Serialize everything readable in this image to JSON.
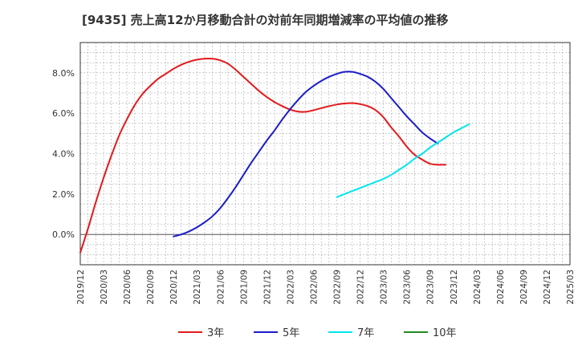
{
  "chart_data": {
    "type": "line",
    "title": "[9435]  売上高12か月移動合計の対前年同期増減率の平均値の推移",
    "xlabel": "",
    "ylabel": "",
    "ylim": [
      -1.5,
      9.5
    ],
    "y_ticks": [
      0,
      2,
      4,
      6,
      8
    ],
    "y_tick_labels": [
      "0.0%",
      "2.0%",
      "4.0%",
      "6.0%",
      "8.0%"
    ],
    "x_tick_labels": [
      "2019/12",
      "2020/03",
      "2020/06",
      "2020/09",
      "2020/12",
      "2021/03",
      "2021/06",
      "2021/09",
      "2021/12",
      "2022/03",
      "2022/06",
      "2022/09",
      "2022/12",
      "2023/03",
      "2023/06",
      "2023/09",
      "2023/12",
      "2024/03",
      "2024/06",
      "2024/09",
      "2024/12",
      "2025/03"
    ],
    "grid": true,
    "legend_position": "bottom",
    "series": [
      {
        "name": "3年",
        "color": "#e31a1c",
        "start_index": 0,
        "values": [
          -0.9,
          0.3,
          1.6,
          2.8,
          3.9,
          4.9,
          5.7,
          6.4,
          6.95,
          7.35,
          7.7,
          7.95,
          8.2,
          8.4,
          8.55,
          8.65,
          8.7,
          8.7,
          8.62,
          8.45,
          8.15,
          7.8,
          7.45,
          7.1,
          6.8,
          6.55,
          6.35,
          6.18,
          6.08,
          6.07,
          6.15,
          6.25,
          6.35,
          6.43,
          6.48,
          6.5,
          6.45,
          6.35,
          6.15,
          5.8,
          5.3,
          4.85,
          4.35,
          3.95,
          3.7,
          3.5,
          3.45,
          3.45
        ]
      },
      {
        "name": "5年",
        "color": "#1c1cc8",
        "start_index": 12,
        "values": [
          -0.1,
          0.0,
          0.15,
          0.35,
          0.6,
          0.9,
          1.3,
          1.8,
          2.35,
          2.95,
          3.55,
          4.1,
          4.65,
          5.15,
          5.7,
          6.2,
          6.65,
          7.05,
          7.35,
          7.6,
          7.8,
          7.95,
          8.05,
          8.05,
          7.95,
          7.8,
          7.55,
          7.2,
          6.75,
          6.3,
          5.85,
          5.45,
          5.05,
          4.75,
          4.5
        ]
      },
      {
        "name": "7年",
        "color": "#00e5ee",
        "start_index": 33,
        "values": [
          1.85,
          2.0,
          2.15,
          2.3,
          2.45,
          2.6,
          2.75,
          2.95,
          3.2,
          3.45,
          3.75,
          4.0,
          4.3,
          4.55,
          4.8,
          5.05,
          5.25,
          5.45
        ]
      },
      {
        "name": "10年",
        "color": "#228b22",
        "start_index": 0,
        "values": []
      }
    ]
  }
}
